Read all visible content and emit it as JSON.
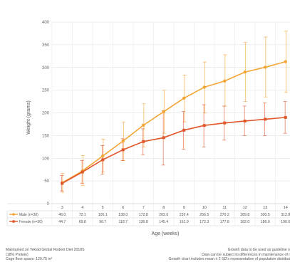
{
  "chart_data": {
    "type": "line",
    "ylabel": "Weight (grams)",
    "xlabel": "Age (weeks)",
    "ylim": [
      0,
      400
    ],
    "yticks": [
      0,
      50,
      100,
      150,
      200,
      250,
      300,
      350,
      400
    ],
    "grid": true,
    "legend": "table-below",
    "x": [
      3,
      4,
      5,
      6,
      7,
      8,
      9,
      10,
      11,
      12,
      13,
      14
    ],
    "x_labels": [
      "3",
      "4",
      "5",
      "6",
      "7",
      "8",
      "9",
      "10",
      "11",
      "12",
      "13",
      "14"
    ],
    "series": [
      {
        "name": "Male (n=30)",
        "color": "#f3a535",
        "values": [
          46.0,
          72.1,
          105.1,
          138.0,
          172.8,
          202.6,
          232.4,
          256.5,
          270.2,
          289.8,
          300.5,
          312.8
        ],
        "labels": [
          "46.0",
          "72.1",
          "105.1",
          "138.0",
          "172.8",
          "202.6",
          "232.4",
          "256.5",
          "270.2",
          "289.8",
          "300.5",
          "312.8"
        ],
        "error_low": [
          25,
          40,
          70,
          95,
          125,
          155,
          180,
          200,
          215,
          225,
          235,
          245
        ],
        "error_high": [
          67,
          106,
          142,
          180,
          220,
          250,
          283,
          312,
          328,
          355,
          367,
          380
        ]
      },
      {
        "name": "Female (n=30)",
        "color": "#e0562b",
        "values": [
          44.7,
          69.8,
          96.7,
          118.7,
          136.8,
          145.4,
          161.9,
          172.3,
          177.8,
          182.0,
          186.0,
          190.0
        ],
        "labels": [
          "44.7",
          "69.8",
          "96.7",
          "118.7",
          "136.8",
          "145.4",
          "161.9",
          "172.3",
          "177.8",
          "182.0",
          "186.0",
          "190.0"
        ],
        "error_low": [
          28,
          45,
          65,
          95,
          108,
          85,
          120,
          125,
          140,
          150,
          150,
          155
        ],
        "error_high": [
          62,
          95,
          128,
          143,
          165,
          205,
          203,
          218,
          215,
          215,
          222,
          225
        ]
      }
    ]
  },
  "notes": {
    "left": [
      "Maintained on Teklad Global Rodent Diet 2018S",
      "(18% Protein)",
      "Cage floor space: 120.75 in²"
    ],
    "right": [
      "Growth data to be used as guideline o",
      "Data can be subject to differences in maintenance of r",
      "Growth chart includes mean ± 2 SD's representative of population distribut"
    ]
  }
}
